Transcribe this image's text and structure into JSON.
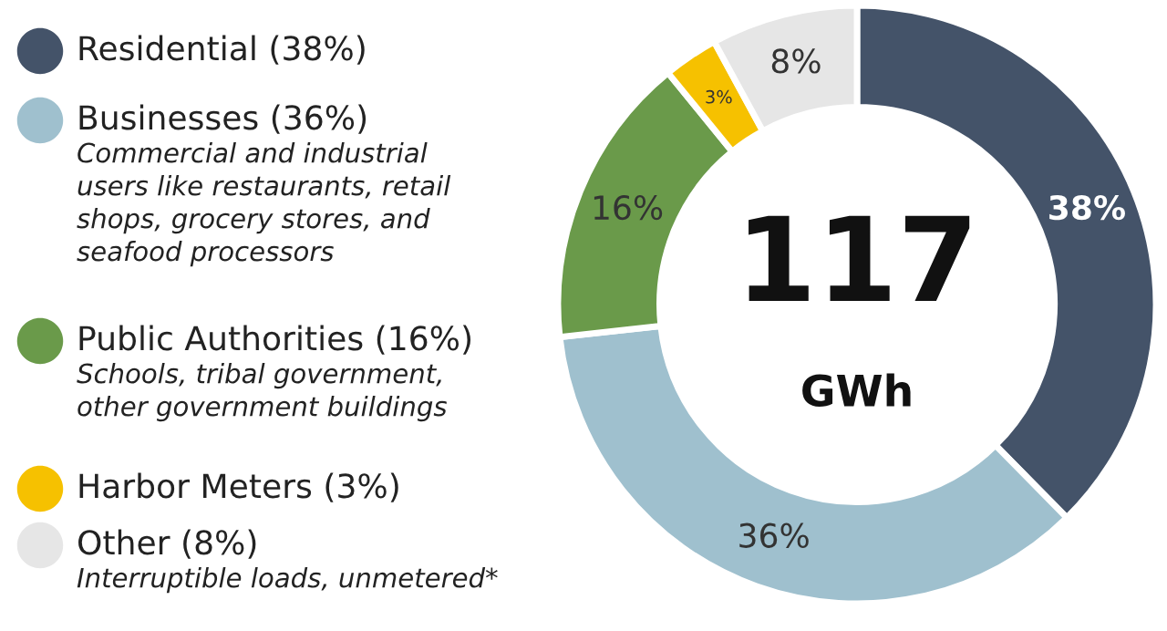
{
  "chart_data": {
    "type": "donut",
    "title": "117",
    "subtitle": "GWh",
    "categories": [
      "Residential (38%)",
      "Businesses (36%)",
      "Public Authorities (16%)",
      "Harbor Meters (3%)",
      "Other (8%)"
    ],
    "values": [
      38,
      36,
      16,
      3,
      8
    ],
    "colors": [
      "#445369",
      "#9fc0ce",
      "#6a9a4a",
      "#f6c100",
      "#e6e6e6"
    ],
    "value_labels": [
      "38%",
      "36%",
      "16%",
      "3%",
      "8%"
    ],
    "legend": "left",
    "annotations": [
      "Commercial and industrial\nusers like restaurants, retail\nshops, grocery stores, and\nseafood processors",
      "Schools, tribal government,\nother government buildings",
      "Interruptible loads, unmetered*"
    ]
  }
}
